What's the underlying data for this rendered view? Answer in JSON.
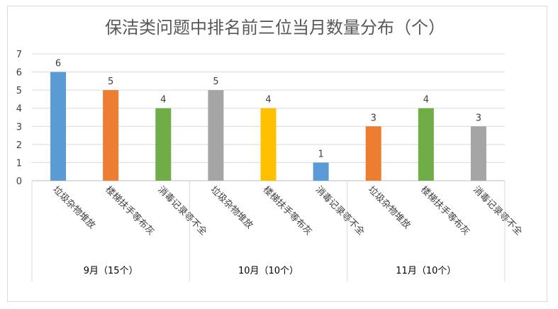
{
  "chart_data": {
    "type": "bar",
    "title": "保洁类问题中排名前三位当月数量分布（个）",
    "ylim": [
      0,
      7
    ],
    "yticks": [
      0,
      1,
      2,
      3,
      4,
      5,
      6,
      7
    ],
    "grid": true,
    "groups": [
      {
        "label": "9月（15个）",
        "bars": [
          {
            "category": "垃圾杂物堆放",
            "value": 6,
            "color": "#5b9bd5"
          },
          {
            "category": "楼梯扶手等布灰",
            "value": 5,
            "color": "#ed7d31"
          },
          {
            "category": "消毒记录等不全",
            "value": 4,
            "color": "#70ad47"
          }
        ]
      },
      {
        "label": "10月（10个）",
        "bars": [
          {
            "category": "垃圾杂物堆放",
            "value": 5,
            "color": "#a5a5a5"
          },
          {
            "category": "楼梯扶手等布灰",
            "value": 4,
            "color": "#ffc000"
          },
          {
            "category": "消毒记录等不全",
            "value": 1,
            "color": "#5b9bd5"
          }
        ]
      },
      {
        "label": "11月（10个）",
        "bars": [
          {
            "category": "垃圾杂物堆放",
            "value": 3,
            "color": "#ed7d31"
          },
          {
            "category": "楼梯扶手等布灰",
            "value": 4,
            "color": "#70ad47"
          },
          {
            "category": "消毒记录等不全",
            "value": 3,
            "color": "#a5a5a5"
          }
        ]
      }
    ]
  }
}
